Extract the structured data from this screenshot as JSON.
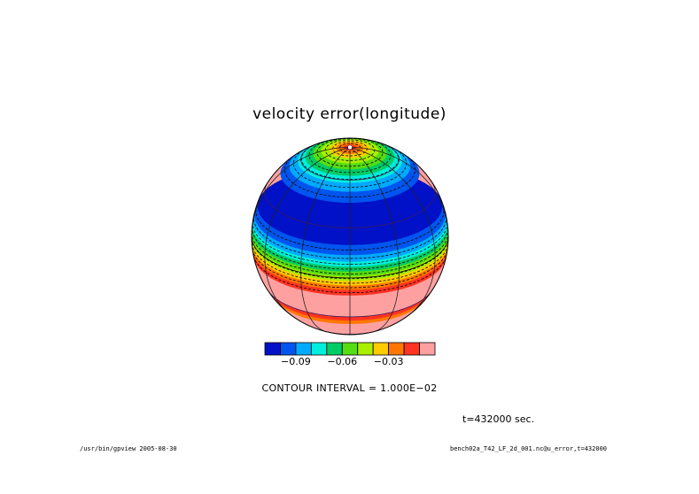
{
  "chart_data": {
    "type": "heatmap",
    "title": "velocity error(longitude)",
    "projection": "orthographic globe",
    "color_levels": [
      "#0011c8",
      "#0055ee",
      "#00aaff",
      "#00eedd",
      "#00cc66",
      "#55dd11",
      "#aaee00",
      "#ffcc00",
      "#ff7700",
      "#ff3322",
      "#ffa0a0"
    ],
    "colorbar_ticks": [
      {
        "label": "−0.09",
        "value": -0.09
      },
      {
        "label": "−0.06",
        "value": -0.06
      },
      {
        "label": "−0.03",
        "value": -0.03
      }
    ],
    "contour_interval_label": "CONTOUR INTERVAL = 1.000E−02",
    "time_label": "t=432000 sec.",
    "latitude_bands": [
      {
        "lat_from": 90,
        "lat_to": 86,
        "level": 9
      },
      {
        "lat_from": 86,
        "lat_to": 82,
        "level": 8
      },
      {
        "lat_from": 82,
        "lat_to": 78,
        "level": 7
      },
      {
        "lat_from": 78,
        "lat_to": 73,
        "level": 6
      },
      {
        "lat_from": 73,
        "lat_to": 68,
        "level": 5
      },
      {
        "lat_from": 68,
        "lat_to": 63,
        "level": 4
      },
      {
        "lat_from": 63,
        "lat_to": 58,
        "level": 3
      },
      {
        "lat_from": 58,
        "lat_to": 52,
        "level": 2
      },
      {
        "lat_from": 52,
        "lat_to": 45,
        "level": 1
      },
      {
        "lat_from": 45,
        "lat_to": 20,
        "level": 0
      },
      {
        "lat_from": 20,
        "lat_to": 14,
        "level": 1
      },
      {
        "lat_from": 14,
        "lat_to": 10,
        "level": 2
      },
      {
        "lat_from": 10,
        "lat_to": 7,
        "level": 3
      },
      {
        "lat_from": 7,
        "lat_to": 4,
        "level": 4
      },
      {
        "lat_from": 4,
        "lat_to": 1,
        "level": 5
      },
      {
        "lat_from": 1,
        "lat_to": -2,
        "level": 6
      },
      {
        "lat_from": -2,
        "lat_to": -5,
        "level": 7
      },
      {
        "lat_from": -5,
        "lat_to": -8,
        "level": 8
      },
      {
        "lat_from": -8,
        "lat_to": -12,
        "level": 9
      },
      {
        "lat_from": -12,
        "lat_to": -30,
        "level": 10
      },
      {
        "lat_from": -30,
        "lat_to": -34,
        "level": 9
      },
      {
        "lat_from": -34,
        "lat_to": -38,
        "level": 8
      },
      {
        "lat_from": -38,
        "lat_to": -90,
        "level": 10
      }
    ],
    "dashed_contours_lat": [
      84,
      80,
      75.5,
      70.5,
      65.5,
      60.5,
      55,
      48.5,
      17,
      12,
      8.5,
      5.5,
      2.5,
      -0.5,
      -3.5,
      -6.5,
      -10
    ],
    "view_center_lat": 25,
    "view_center_lon": 0,
    "graticule_lat": [
      60,
      30,
      0,
      -30,
      -60
    ],
    "graticule_lon": [
      -90,
      -60,
      -30,
      0,
      30,
      60,
      90
    ]
  },
  "footer": {
    "left": "/usr/bin/gpview  2005-08-30",
    "right": "bench02a_T42_LF_2d_001.nc@u_error,t=432000"
  }
}
